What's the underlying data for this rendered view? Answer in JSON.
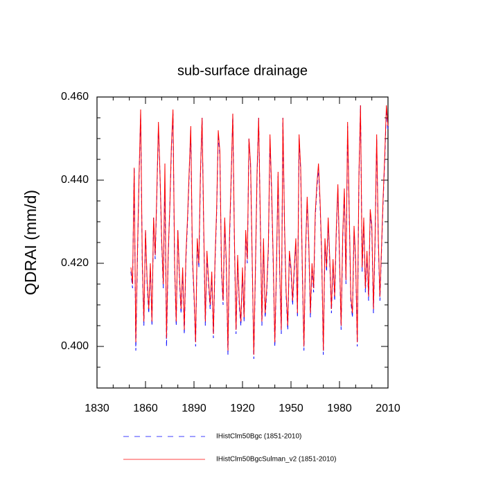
{
  "chart_data": {
    "type": "line",
    "title": "sub-surface drainage",
    "ylabel": "QDRAI  (mm/d)",
    "x": [
      1851,
      1852,
      1853,
      1854,
      1855,
      1856,
      1857,
      1858,
      1859,
      1860,
      1861,
      1862,
      1863,
      1864,
      1865,
      1866,
      1867,
      1868,
      1869,
      1870,
      1871,
      1872,
      1873,
      1874,
      1875,
      1876,
      1877,
      1878,
      1879,
      1880,
      1881,
      1882,
      1883,
      1884,
      1885,
      1886,
      1887,
      1888,
      1889,
      1890,
      1891,
      1892,
      1893,
      1894,
      1895,
      1896,
      1897,
      1898,
      1899,
      1900,
      1901,
      1902,
      1903,
      1904,
      1905,
      1906,
      1907,
      1908,
      1909,
      1910,
      1911,
      1912,
      1913,
      1914,
      1915,
      1916,
      1917,
      1918,
      1919,
      1920,
      1921,
      1922,
      1923,
      1924,
      1925,
      1926,
      1927,
      1928,
      1929,
      1930,
      1931,
      1932,
      1933,
      1934,
      1935,
      1936,
      1937,
      1938,
      1939,
      1940,
      1941,
      1942,
      1943,
      1944,
      1945,
      1946,
      1947,
      1948,
      1949,
      1950,
      1951,
      1952,
      1953,
      1954,
      1955,
      1956,
      1957,
      1958,
      1959,
      1960,
      1961,
      1962,
      1963,
      1964,
      1965,
      1966,
      1967,
      1968,
      1969,
      1970,
      1971,
      1972,
      1973,
      1974,
      1975,
      1976,
      1977,
      1978,
      1979,
      1980,
      1981,
      1982,
      1983,
      1984,
      1985,
      1986,
      1987,
      1988,
      1989,
      1990,
      1991,
      1992,
      1993,
      1994,
      1995,
      1996,
      1997,
      1998,
      1999,
      2000,
      2001,
      2002,
      2003,
      2004,
      2005,
      2006,
      2007,
      2008,
      2009,
      2010
    ],
    "series": [
      {
        "name": "IHistClm50Bgc (1851-2010)",
        "color": "#0000ff",
        "dash": true,
        "values": [
          0.418,
          0.414,
          0.443,
          0.399,
          0.421,
          0.44,
          0.456,
          0.42,
          0.405,
          0.428,
          0.415,
          0.408,
          0.419,
          0.405,
          0.431,
          0.421,
          0.436,
          0.453,
          0.441,
          0.425,
          0.414,
          0.44,
          0.4,
          0.421,
          0.433,
          0.447,
          0.456,
          0.419,
          0.405,
          0.428,
          0.416,
          0.408,
          0.418,
          0.403,
          0.421,
          0.43,
          0.441,
          0.452,
          0.421,
          0.412,
          0.4,
          0.425,
          0.419,
          0.441,
          0.455,
          0.428,
          0.405,
          0.422,
          0.415,
          0.409,
          0.417,
          0.402,
          0.42,
          0.432,
          0.451,
          0.446,
          0.418,
          0.41,
          0.43,
          0.419,
          0.398,
          0.426,
          0.44,
          0.456,
          0.425,
          0.403,
          0.421,
          0.41,
          0.405,
          0.418,
          0.406,
          0.427,
          0.42,
          0.45,
          0.443,
          0.42,
          0.397,
          0.418,
          0.441,
          0.455,
          0.43,
          0.405,
          0.425,
          0.407,
          0.413,
          0.423,
          0.45,
          0.437,
          0.42,
          0.4,
          0.418,
          0.441,
          0.418,
          0.403,
          0.455,
          0.428,
          0.412,
          0.404,
          0.422,
          0.418,
          0.41,
          0.418,
          0.425,
          0.407,
          0.45,
          0.442,
          0.418,
          0.399,
          0.422,
          0.435,
          0.424,
          0.407,
          0.419,
          0.413,
          0.431,
          0.438,
          0.443,
          0.434,
          0.421,
          0.398,
          0.425,
          0.418,
          0.43,
          0.42,
          0.408,
          0.42,
          0.411,
          0.427,
          0.438,
          0.421,
          0.404,
          0.426,
          0.437,
          0.415,
          0.453,
          0.432,
          0.411,
          0.407,
          0.428,
          0.42,
          0.4,
          0.44,
          0.458,
          0.418,
          0.43,
          0.413,
          0.422,
          0.411,
          0.432,
          0.428,
          0.408,
          0.425,
          0.45,
          0.425,
          0.411,
          0.423,
          0.435,
          0.445,
          0.457,
          0.452
        ]
      },
      {
        "name": "IHistClm50BgcSulman_v2 (1851-2010)",
        "color": "#ff0000",
        "dash": false,
        "values": [
          0.419,
          0.415,
          0.443,
          0.401,
          0.422,
          0.441,
          0.457,
          0.421,
          0.406,
          0.428,
          0.416,
          0.409,
          0.42,
          0.406,
          0.431,
          0.422,
          0.437,
          0.454,
          0.441,
          0.426,
          0.415,
          0.444,
          0.402,
          0.422,
          0.433,
          0.448,
          0.457,
          0.42,
          0.406,
          0.428,
          0.417,
          0.409,
          0.419,
          0.404,
          0.422,
          0.431,
          0.442,
          0.453,
          0.422,
          0.413,
          0.401,
          0.426,
          0.42,
          0.442,
          0.455,
          0.429,
          0.406,
          0.423,
          0.416,
          0.41,
          0.418,
          0.403,
          0.421,
          0.433,
          0.452,
          0.447,
          0.419,
          0.411,
          0.431,
          0.42,
          0.399,
          0.427,
          0.441,
          0.456,
          0.426,
          0.404,
          0.422,
          0.411,
          0.406,
          0.419,
          0.407,
          0.428,
          0.421,
          0.45,
          0.444,
          0.421,
          0.398,
          0.419,
          0.442,
          0.455,
          0.431,
          0.406,
          0.426,
          0.408,
          0.414,
          0.424,
          0.451,
          0.438,
          0.421,
          0.401,
          0.419,
          0.442,
          0.419,
          0.404,
          0.455,
          0.429,
          0.413,
          0.405,
          0.423,
          0.419,
          0.411,
          0.419,
          0.426,
          0.408,
          0.451,
          0.443,
          0.419,
          0.4,
          0.423,
          0.436,
          0.425,
          0.408,
          0.42,
          0.414,
          0.432,
          0.439,
          0.444,
          0.435,
          0.422,
          0.399,
          0.426,
          0.419,
          0.431,
          0.421,
          0.409,
          0.421,
          0.412,
          0.428,
          0.439,
          0.422,
          0.405,
          0.427,
          0.438,
          0.416,
          0.454,
          0.433,
          0.412,
          0.408,
          0.429,
          0.421,
          0.401,
          0.441,
          0.458,
          0.419,
          0.431,
          0.414,
          0.423,
          0.412,
          0.433,
          0.429,
          0.409,
          0.426,
          0.451,
          0.426,
          0.412,
          0.424,
          0.436,
          0.446,
          0.458,
          0.453
        ]
      }
    ],
    "xlim": [
      1830,
      2010
    ],
    "xticks": [
      1830,
      1860,
      1890,
      1920,
      1950,
      1980,
      2010
    ],
    "xminorticks": [
      1840,
      1850,
      1870,
      1880,
      1900,
      1910,
      1930,
      1940,
      1960,
      1970,
      1990,
      2000
    ],
    "ylim": [
      0.39,
      0.46
    ],
    "yticks": [
      {
        "value": 0.4,
        "label": "0.400"
      },
      {
        "value": 0.42,
        "label": "0.420"
      },
      {
        "value": 0.44,
        "label": "0.440"
      },
      {
        "value": 0.46,
        "label": "0.460"
      }
    ],
    "yminorticks": [
      0.39,
      0.395,
      0.405,
      0.41,
      0.415,
      0.425,
      0.43,
      0.435,
      0.445,
      0.45,
      0.455
    ],
    "grid": false
  }
}
